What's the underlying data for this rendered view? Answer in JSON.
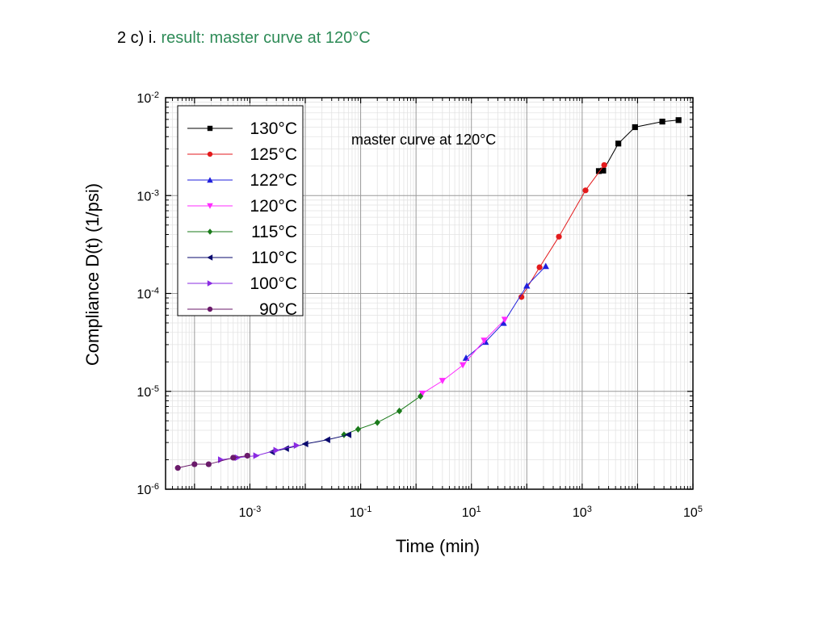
{
  "slide": {
    "prefix": "2 c) i.",
    "title": "result: master curve at 120°C"
  },
  "colors": {
    "130": "#000000",
    "125": "#e31a1c",
    "122": "#1f1fdc",
    "120": "#ff2bff",
    "115": "#1a7a1a",
    "110": "#0a0a6e",
    "100": "#8a2be2",
    "90": "#6a1a6a",
    "title_accent": "#2e8b57"
  },
  "chart_data": {
    "type": "scatter",
    "title": "",
    "annotation": "master curve at 120°C",
    "xlabel": "Time (min)",
    "ylabel": "Compliance D(t) (1/psi)",
    "xscale": "log",
    "yscale": "log",
    "xlim": [
      3e-05,
      100000
    ],
    "ylim": [
      1e-06,
      0.01
    ],
    "xticks": [
      {
        "value": 0.001,
        "base": "10",
        "exp": "-3"
      },
      {
        "value": 0.1,
        "base": "10",
        "exp": "-1"
      },
      {
        "value": 10,
        "base": "10",
        "exp": "1"
      },
      {
        "value": 1000,
        "base": "10",
        "exp": "3"
      },
      {
        "value": 100000,
        "base": "10",
        "exp": "5"
      }
    ],
    "yticks": [
      {
        "value": 1e-06,
        "base": "10",
        "exp": "-6"
      },
      {
        "value": 1e-05,
        "base": "10",
        "exp": "-5"
      },
      {
        "value": 0.0001,
        "base": "10",
        "exp": "-4"
      },
      {
        "value": 0.001,
        "base": "10",
        "exp": "-3"
      },
      {
        "value": 0.01,
        "base": "10",
        "exp": "-2"
      }
    ],
    "grid": true,
    "legend_position": "top-left",
    "series": [
      {
        "name": "130°C",
        "key": "130",
        "marker": "square",
        "x": [
          2000,
          2400,
          4500,
          9000,
          28000,
          55000
        ],
        "y": [
          0.00178,
          0.0018,
          0.0034,
          0.005,
          0.0057,
          0.0059
        ]
      },
      {
        "name": "125°C",
        "key": "125",
        "marker": "circle",
        "x": [
          80,
          170,
          380,
          1150,
          2500
        ],
        "y": [
          9.2e-05,
          0.000185,
          0.00038,
          0.00113,
          0.00205
        ]
      },
      {
        "name": "122°C",
        "key": "122",
        "marker": "triangle-up",
        "x": [
          8,
          18,
          38,
          100,
          220
        ],
        "y": [
          2.2e-05,
          3.2e-05,
          5e-05,
          0.00012,
          0.00019
        ]
      },
      {
        "name": "120°C",
        "key": "120",
        "marker": "triangle-down",
        "x": [
          1.3,
          3,
          7,
          17,
          40
        ],
        "y": [
          9.5e-06,
          1.28e-05,
          1.85e-05,
          3.3e-05,
          5.4e-05
        ]
      },
      {
        "name": "115°C",
        "key": "115",
        "marker": "diamond",
        "x": [
          0.05,
          0.09,
          0.2,
          0.5,
          1.2
        ],
        "y": [
          3.6e-06,
          4.1e-06,
          4.8e-06,
          6.3e-06,
          8.9e-06
        ]
      },
      {
        "name": "110°C",
        "key": "110",
        "marker": "triangle-left",
        "x": [
          0.0025,
          0.0045,
          0.01,
          0.025,
          0.06
        ],
        "y": [
          2.4e-06,
          2.6e-06,
          2.9e-06,
          3.2e-06,
          3.6e-06
        ]
      },
      {
        "name": "100°C",
        "key": "100",
        "marker": "triangle-right",
        "x": [
          0.0003,
          0.0006,
          0.0013,
          0.003,
          0.007
        ],
        "y": [
          2e-06,
          2.1e-06,
          2.2e-06,
          2.5e-06,
          2.8e-06
        ]
      },
      {
        "name": "90°C",
        "key": "90",
        "marker": "circle",
        "x": [
          5e-05,
          0.0001,
          0.00018,
          0.0005,
          0.0009
        ],
        "y": [
          1.65e-06,
          1.8e-06,
          1.8e-06,
          2.1e-06,
          2.2e-06
        ]
      }
    ]
  }
}
